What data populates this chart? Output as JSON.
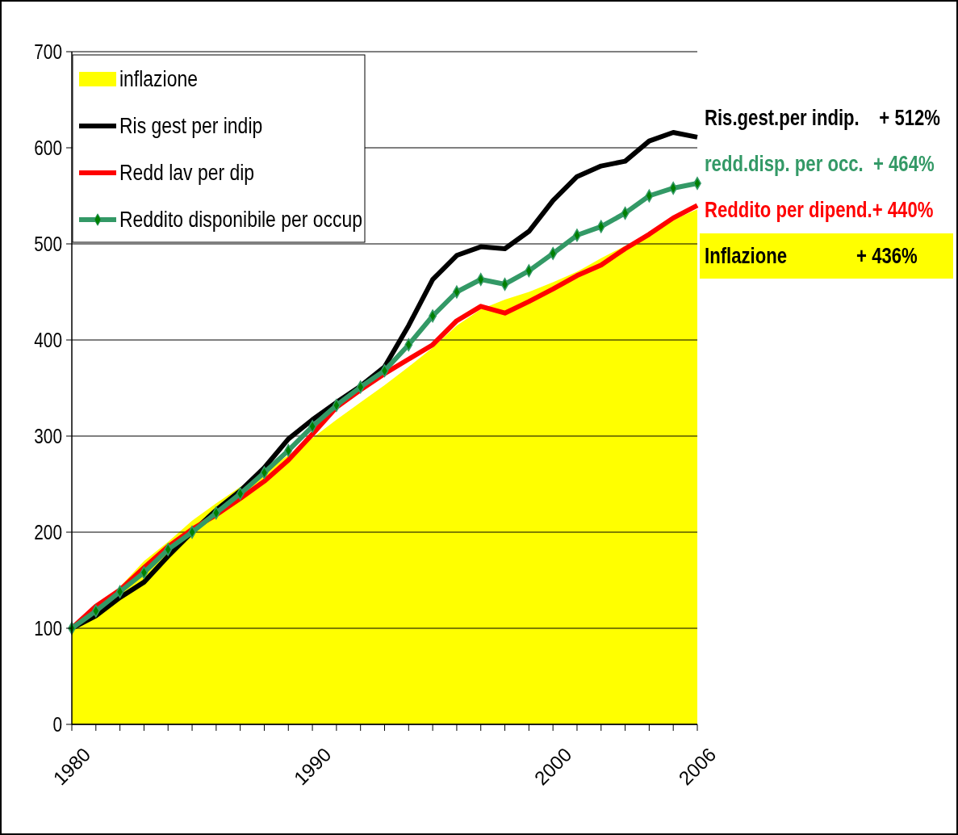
{
  "chart_data": {
    "type": "line",
    "x": [
      1980,
      1981,
      1982,
      1983,
      1984,
      1985,
      1986,
      1987,
      1988,
      1989,
      1990,
      1991,
      1992,
      1993,
      1994,
      1995,
      1996,
      1997,
      1998,
      1999,
      2000,
      2001,
      2002,
      2003,
      2004,
      2005,
      2006
    ],
    "series": [
      {
        "name": "inflazione",
        "type": "area",
        "color": "#ffff00",
        "values": [
          100,
          122,
          143,
          170,
          190,
          212,
          230,
          247,
          263,
          280,
          298,
          317,
          335,
          353,
          372,
          392,
          415,
          432,
          442,
          450,
          460,
          471,
          485,
          498,
          511,
          525,
          536
        ]
      },
      {
        "name": "Ris gest per indip",
        "color": "#000000",
        "values": [
          100,
          113,
          132,
          148,
          175,
          200,
          223,
          243,
          267,
          297,
          317,
          335,
          352,
          372,
          415,
          463,
          488,
          497,
          495,
          513,
          545,
          570,
          581,
          586,
          607,
          616,
          611
        ]
      },
      {
        "name": "Redd lav per dip",
        "color": "#ff0000",
        "values": [
          100,
          123,
          140,
          163,
          185,
          203,
          218,
          235,
          253,
          275,
          302,
          330,
          348,
          365,
          380,
          395,
          420,
          435,
          428,
          440,
          453,
          467,
          478,
          495,
          510,
          527,
          540
        ]
      },
      {
        "name": "Reddito disponibile per occup",
        "color": "#339966",
        "marker": "diamond",
        "values": [
          100,
          118,
          138,
          158,
          182,
          200,
          220,
          240,
          262,
          285,
          310,
          332,
          351,
          368,
          395,
          425,
          450,
          463,
          458,
          472,
          490,
          509,
          518,
          532,
          550,
          558,
          563
        ]
      }
    ],
    "xlim": [
      1980,
      2006
    ],
    "xticks": [
      1980,
      {
        "value": 1981,
        "label": null
      },
      {
        "value": 1982,
        "label": null
      },
      {
        "value": 1983,
        "label": null
      },
      {
        "value": 1984,
        "label": null
      },
      {
        "value": 1985,
        "label": null
      },
      {
        "value": 1986,
        "label": null
      },
      {
        "value": 1987,
        "label": null
      },
      {
        "value": 1988,
        "label": null
      },
      {
        "value": 1989,
        "label": null
      },
      1990,
      {
        "value": 1991,
        "label": null
      },
      {
        "value": 1992,
        "label": null
      },
      {
        "value": 1993,
        "label": null
      },
      {
        "value": 1994,
        "label": null
      },
      {
        "value": 1995,
        "label": null
      },
      {
        "value": 1996,
        "label": null
      },
      {
        "value": 1997,
        "label": null
      },
      {
        "value": 1998,
        "label": null
      },
      {
        "value": 1999,
        "label": null
      },
      2000,
      {
        "value": 2001,
        "label": null
      },
      {
        "value": 2002,
        "label": null
      },
      {
        "value": 2003,
        "label": null
      },
      {
        "value": 2004,
        "label": null
      },
      {
        "value": 2005,
        "label": null
      },
      2006
    ],
    "ylim": [
      0,
      700
    ],
    "yticks": [
      0,
      100,
      200,
      300,
      400,
      500,
      600,
      700
    ],
    "grid": "y",
    "legend": "top left",
    "annotations": [
      "Ris.gest.per indip.    + 512%",
      "redd.disp. per occ.  + 464%",
      "Reddito per dipend.+ 440%",
      "Inflazione              + 436%"
    ]
  }
}
